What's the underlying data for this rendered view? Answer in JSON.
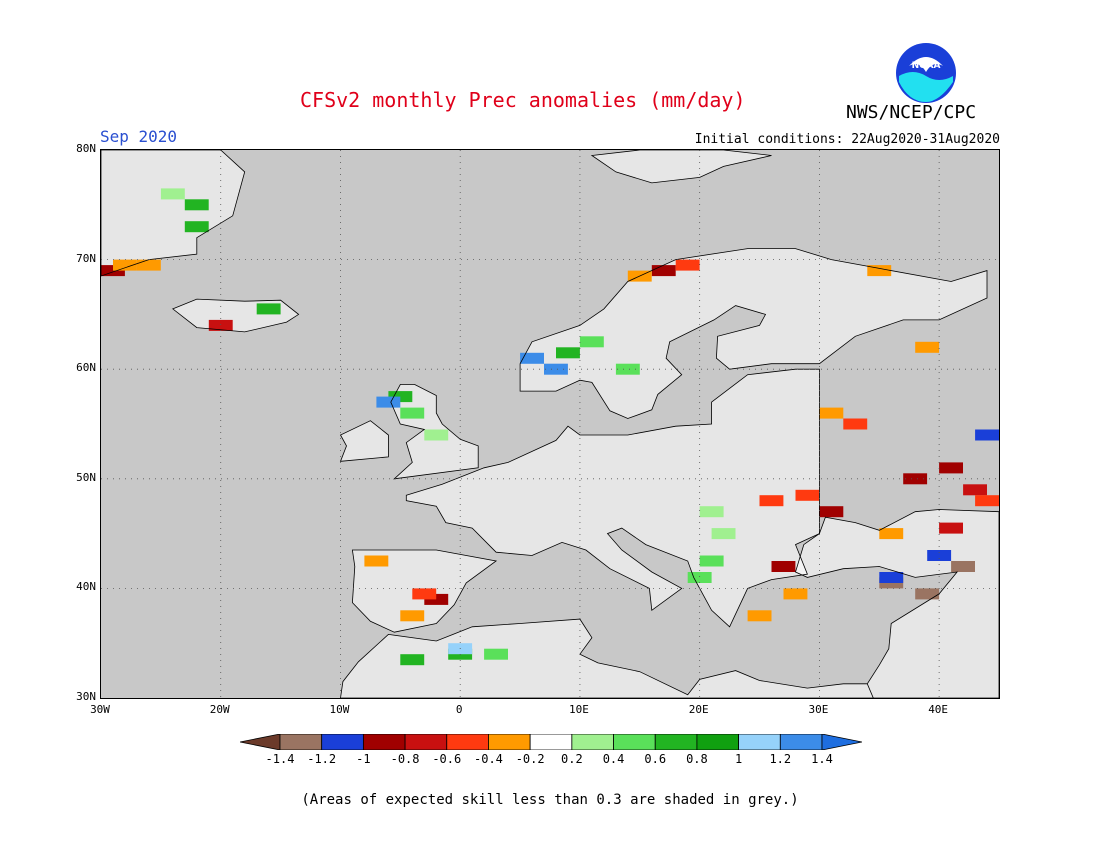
{
  "header": {
    "title": "CFSv2 monthly Prec anomalies (mm/day)",
    "agency": "NWS/NCEP/CPC",
    "logo_text": "NOAA",
    "month": "Sep 2020",
    "initial_conditions": "Initial conditions: 22Aug2020-31Aug2020"
  },
  "map": {
    "projection": "lat-lon",
    "lon_range": [
      -30,
      45
    ],
    "lat_range": [
      30,
      80
    ],
    "lat_labels": [
      "80N",
      "70N",
      "60N",
      "50N",
      "40N",
      "30N"
    ],
    "lon_labels": [
      "30W",
      "20W",
      "10W",
      "0",
      "10E",
      "20E",
      "30E",
      "40E"
    ],
    "grid": "dotted"
  },
  "colorbar": {
    "labels": [
      "-1.4",
      "-1.2",
      "-1",
      "-0.8",
      "-0.6",
      "-0.4",
      "-0.2",
      "0.2",
      "0.4",
      "0.6",
      "0.8",
      "1",
      "1.2",
      "1.4"
    ],
    "colors": [
      "#6b3a2a",
      "#9a7462",
      "#1a3fd8",
      "#a00000",
      "#c81010",
      "#ff3a10",
      "#ff9a00",
      "#ffffff",
      "#a0f090",
      "#5ae05a",
      "#22b422",
      "#10a010",
      "#96d2fa",
      "#3c8ce8",
      "#1e6ee0"
    ]
  },
  "footnote": "(Areas of expected skill less than 0.3 are shaded in grey.)",
  "chart_data": {
    "type": "heatmap",
    "title": "CFSv2 monthly Prec anomalies (mm/day)",
    "units": "mm/day",
    "period": "Sep 2020",
    "xlim": [
      -30,
      45
    ],
    "ylim": [
      30,
      80
    ],
    "cells": [
      {
        "lon": -29,
        "lat": 69,
        "value": -1.0
      },
      {
        "lon": -28,
        "lat": 69.5,
        "value": -0.3
      },
      {
        "lon": -26,
        "lat": 69.5,
        "value": -0.3
      },
      {
        "lon": -24,
        "lat": 76,
        "value": 0.3
      },
      {
        "lon": -22,
        "lat": 75,
        "value": 0.7
      },
      {
        "lon": -22,
        "lat": 73,
        "value": 0.7
      },
      {
        "lon": -16,
        "lat": 65.5,
        "value": 0.7
      },
      {
        "lon": -20,
        "lat": 64,
        "value": -0.7
      },
      {
        "lon": -5,
        "lat": 57.5,
        "value": 0.7
      },
      {
        "lon": -6,
        "lat": 57,
        "value": 1.3
      },
      {
        "lon": -4,
        "lat": 56,
        "value": 0.5
      },
      {
        "lon": -2,
        "lat": 54,
        "value": 0.3
      },
      {
        "lon": 6,
        "lat": 61,
        "value": 1.3
      },
      {
        "lon": 8,
        "lat": 60,
        "value": 1.3
      },
      {
        "lon": 9,
        "lat": 61.5,
        "value": 0.6
      },
      {
        "lon": 11,
        "lat": 62.5,
        "value": 0.5
      },
      {
        "lon": 14,
        "lat": 60,
        "value": 0.4
      },
      {
        "lon": 17,
        "lat": 69,
        "value": -0.9
      },
      {
        "lon": 19,
        "lat": 69.5,
        "value": -0.6
      },
      {
        "lon": 15,
        "lat": 68.5,
        "value": -0.3
      },
      {
        "lon": 35,
        "lat": 69,
        "value": -0.3
      },
      {
        "lon": 39,
        "lat": 62,
        "value": -0.3
      },
      {
        "lon": 31,
        "lat": 56,
        "value": -0.3
      },
      {
        "lon": 33,
        "lat": 55,
        "value": -0.6
      },
      {
        "lon": 38,
        "lat": 50,
        "value": -0.9
      },
      {
        "lon": 41,
        "lat": 51,
        "value": -0.9
      },
      {
        "lon": 43,
        "lat": 49,
        "value": -0.7
      },
      {
        "lon": 44,
        "lat": 48,
        "value": -0.6
      },
      {
        "lon": 29,
        "lat": 48.5,
        "value": -0.6
      },
      {
        "lon": 31,
        "lat": 47,
        "value": -0.9
      },
      {
        "lon": 26,
        "lat": 48,
        "value": -0.6
      },
      {
        "lon": 36,
        "lat": 45,
        "value": -0.4
      },
      {
        "lon": 41,
        "lat": 45.5,
        "value": -0.7
      },
      {
        "lon": 40,
        "lat": 43,
        "value": -1.2
      },
      {
        "lon": 44,
        "lat": 54,
        "value": -1.2
      },
      {
        "lon": 42,
        "lat": 42,
        "value": -1.4
      },
      {
        "lon": 36,
        "lat": 40.5,
        "value": -1.4
      },
      {
        "lon": 39,
        "lat": 39.5,
        "value": -1.4
      },
      {
        "lon": 36,
        "lat": 41,
        "value": -1.2
      },
      {
        "lon": 27,
        "lat": 42,
        "value": -0.9
      },
      {
        "lon": 28,
        "lat": 39.5,
        "value": -0.3
      },
      {
        "lon": 25,
        "lat": 37.5,
        "value": -0.3
      },
      {
        "lon": 21,
        "lat": 47,
        "value": 0.3
      },
      {
        "lon": 22,
        "lat": 45,
        "value": 0.3
      },
      {
        "lon": 21,
        "lat": 42.5,
        "value": 0.5
      },
      {
        "lon": 20,
        "lat": 41,
        "value": 0.5
      },
      {
        "lon": -2,
        "lat": 39,
        "value": -0.9
      },
      {
        "lon": -3,
        "lat": 39.5,
        "value": -0.6
      },
      {
        "lon": -4,
        "lat": 37.5,
        "value": -0.3
      },
      {
        "lon": -7,
        "lat": 42.5,
        "value": -0.3
      },
      {
        "lon": -4,
        "lat": 33.5,
        "value": 0.7
      },
      {
        "lon": 0,
        "lat": 34,
        "value": 0.7
      },
      {
        "lon": 0,
        "lat": 34.5,
        "value": 1.1
      },
      {
        "lon": 3,
        "lat": 34,
        "value": 0.5
      }
    ]
  }
}
